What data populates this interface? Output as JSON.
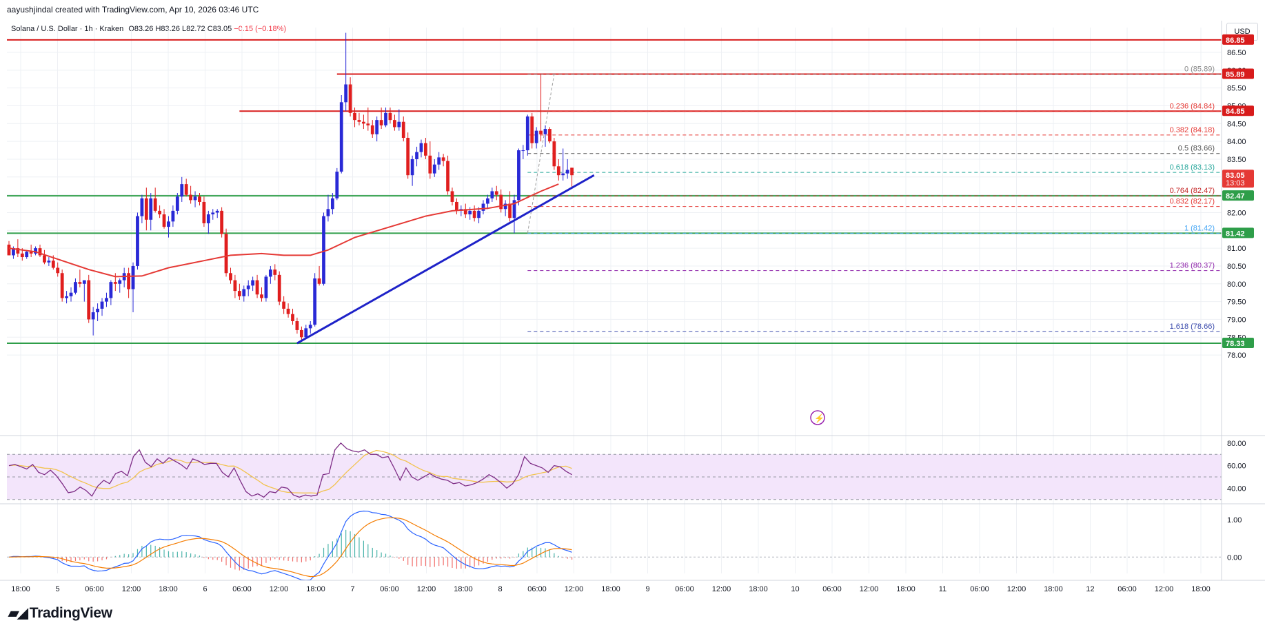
{
  "header": {
    "credit": "aayushjindal created with TradingView.com, Apr 10, 2026 03:46 UTC",
    "symbol": "Solana / U.S. Dollar · 1h · Kraken",
    "open_label": "O",
    "open": "83.26",
    "high_label": "H",
    "high": "83.26",
    "low_label": "L",
    "low": "82.72",
    "close_label": "C",
    "close": "83.05",
    "change": "−0.15 (−0.18%)",
    "currency": "USD"
  },
  "logo": {
    "text": "TradingView",
    "icon": "tradingview-logo-icon"
  },
  "colors": {
    "up": "#2929d6",
    "down": "#e01e1e",
    "ma": "#e53935",
    "trend": "#1e22c8",
    "support": "#2e9e49",
    "resistance": "#d81b1b",
    "rsi": "#7e2d86",
    "rsi_ma": "#f2c34f",
    "rsi_band": "#f3e5fb",
    "macd": "#2962ff",
    "signal": "#f57c00",
    "grid": "#eef0f4"
  },
  "chart_data": {
    "type": "candlestick",
    "symbol": "Solana / U.S. Dollar",
    "interval": "1h",
    "exchange": "Kraken",
    "ylim": [
      77.75,
      87.1
    ],
    "y_ticks": [
      78.0,
      78.5,
      79.0,
      79.5,
      80.0,
      80.5,
      81.0,
      81.5,
      82.0,
      82.5,
      83.0,
      83.5,
      84.0,
      84.5,
      85.0,
      85.5,
      86.0,
      86.5
    ],
    "x_ticks": [
      "18:00",
      "5",
      "06:00",
      "12:00",
      "18:00",
      "6",
      "06:00",
      "12:00",
      "18:00",
      "7",
      "06:00",
      "12:00",
      "18:00",
      "8",
      "06:00",
      "12:00",
      "18:00",
      "9",
      "06:00",
      "12:00",
      "18:00",
      "10",
      "06:00",
      "12:00",
      "18:00",
      "11",
      "06:00",
      "12:00",
      "18:00",
      "12",
      "06:00",
      "12:00",
      "18:00"
    ],
    "candles": [
      {
        "o": 81.1,
        "h": 81.2,
        "l": 80.8,
        "c": 80.8
      },
      {
        "o": 80.8,
        "h": 81.05,
        "l": 80.7,
        "c": 81.0
      },
      {
        "o": 81.0,
        "h": 81.25,
        "l": 80.75,
        "c": 80.85
      },
      {
        "o": 80.85,
        "h": 81.0,
        "l": 80.65,
        "c": 80.75
      },
      {
        "o": 80.75,
        "h": 80.95,
        "l": 80.7,
        "c": 80.9
      },
      {
        "o": 80.9,
        "h": 81.1,
        "l": 80.75,
        "c": 80.85
      },
      {
        "o": 80.85,
        "h": 81.05,
        "l": 80.8,
        "c": 81.0
      },
      {
        "o": 81.0,
        "h": 81.1,
        "l": 80.75,
        "c": 80.8
      },
      {
        "o": 80.8,
        "h": 80.95,
        "l": 80.55,
        "c": 80.6
      },
      {
        "o": 80.6,
        "h": 80.75,
        "l": 80.5,
        "c": 80.65
      },
      {
        "o": 80.65,
        "h": 80.8,
        "l": 80.4,
        "c": 80.45
      },
      {
        "o": 80.45,
        "h": 80.6,
        "l": 80.2,
        "c": 80.3
      },
      {
        "o": 80.3,
        "h": 80.4,
        "l": 79.5,
        "c": 79.6
      },
      {
        "o": 79.6,
        "h": 79.8,
        "l": 79.45,
        "c": 79.65
      },
      {
        "o": 79.65,
        "h": 79.9,
        "l": 79.5,
        "c": 79.75
      },
      {
        "o": 79.75,
        "h": 80.15,
        "l": 79.7,
        "c": 80.05
      },
      {
        "o": 80.05,
        "h": 80.4,
        "l": 79.9,
        "c": 80.0
      },
      {
        "o": 80.0,
        "h": 80.1,
        "l": 79.5,
        "c": 80.1
      },
      {
        "o": 80.1,
        "h": 80.25,
        "l": 78.9,
        "c": 79.0
      },
      {
        "o": 79.0,
        "h": 79.35,
        "l": 78.55,
        "c": 79.2
      },
      {
        "o": 79.2,
        "h": 79.45,
        "l": 78.95,
        "c": 79.3
      },
      {
        "o": 79.3,
        "h": 79.6,
        "l": 79.1,
        "c": 79.5
      },
      {
        "o": 79.5,
        "h": 79.75,
        "l": 79.35,
        "c": 79.6
      },
      {
        "o": 79.6,
        "h": 80.1,
        "l": 79.4,
        "c": 80.05
      },
      {
        "o": 80.05,
        "h": 80.3,
        "l": 79.8,
        "c": 80.0
      },
      {
        "o": 80.0,
        "h": 80.15,
        "l": 79.75,
        "c": 80.1
      },
      {
        "o": 80.1,
        "h": 80.45,
        "l": 79.9,
        "c": 80.3
      },
      {
        "o": 80.3,
        "h": 80.45,
        "l": 79.6,
        "c": 79.85
      },
      {
        "o": 79.85,
        "h": 80.6,
        "l": 79.2,
        "c": 80.5
      },
      {
        "o": 80.5,
        "h": 82.0,
        "l": 80.4,
        "c": 81.9
      },
      {
        "o": 81.9,
        "h": 82.5,
        "l": 81.7,
        "c": 82.4
      },
      {
        "o": 82.4,
        "h": 82.7,
        "l": 81.5,
        "c": 81.8
      },
      {
        "o": 81.8,
        "h": 82.55,
        "l": 81.5,
        "c": 82.4
      },
      {
        "o": 82.4,
        "h": 82.7,
        "l": 82.0,
        "c": 82.05
      },
      {
        "o": 82.05,
        "h": 82.2,
        "l": 81.85,
        "c": 81.95
      },
      {
        "o": 81.95,
        "h": 82.1,
        "l": 81.55,
        "c": 81.6
      },
      {
        "o": 81.6,
        "h": 81.9,
        "l": 81.3,
        "c": 81.75
      },
      {
        "o": 81.75,
        "h": 82.2,
        "l": 81.6,
        "c": 82.05
      },
      {
        "o": 82.05,
        "h": 82.55,
        "l": 81.95,
        "c": 82.45
      },
      {
        "o": 82.45,
        "h": 83.0,
        "l": 82.3,
        "c": 82.8
      },
      {
        "o": 82.8,
        "h": 82.95,
        "l": 82.45,
        "c": 82.5
      },
      {
        "o": 82.5,
        "h": 82.75,
        "l": 82.25,
        "c": 82.35
      },
      {
        "o": 82.35,
        "h": 82.6,
        "l": 82.15,
        "c": 82.45
      },
      {
        "o": 82.45,
        "h": 82.55,
        "l": 82.2,
        "c": 82.3
      },
      {
        "o": 82.3,
        "h": 82.45,
        "l": 81.6,
        "c": 81.7
      },
      {
        "o": 81.7,
        "h": 82.05,
        "l": 81.4,
        "c": 81.95
      },
      {
        "o": 81.95,
        "h": 82.1,
        "l": 81.8,
        "c": 82.0
      },
      {
        "o": 82.0,
        "h": 82.1,
        "l": 81.85,
        "c": 82.05
      },
      {
        "o": 82.05,
        "h": 82.15,
        "l": 81.3,
        "c": 81.4
      },
      {
        "o": 81.4,
        "h": 81.55,
        "l": 80.2,
        "c": 80.3
      },
      {
        "o": 80.3,
        "h": 80.45,
        "l": 80.0,
        "c": 80.1
      },
      {
        "o": 80.1,
        "h": 80.25,
        "l": 79.6,
        "c": 79.8
      },
      {
        "o": 79.8,
        "h": 80.0,
        "l": 79.55,
        "c": 79.65
      },
      {
        "o": 79.65,
        "h": 79.95,
        "l": 79.5,
        "c": 79.85
      },
      {
        "o": 79.85,
        "h": 80.1,
        "l": 79.65,
        "c": 79.95
      },
      {
        "o": 79.95,
        "h": 80.2,
        "l": 79.8,
        "c": 80.1
      },
      {
        "o": 80.1,
        "h": 80.25,
        "l": 79.6,
        "c": 79.7
      },
      {
        "o": 79.7,
        "h": 79.9,
        "l": 79.5,
        "c": 79.6
      },
      {
        "o": 79.6,
        "h": 80.25,
        "l": 79.5,
        "c": 80.2
      },
      {
        "o": 80.2,
        "h": 80.5,
        "l": 80.0,
        "c": 80.4
      },
      {
        "o": 80.4,
        "h": 80.55,
        "l": 80.1,
        "c": 80.25
      },
      {
        "o": 80.25,
        "h": 80.35,
        "l": 79.4,
        "c": 79.5
      },
      {
        "o": 79.5,
        "h": 79.65,
        "l": 79.15,
        "c": 79.3
      },
      {
        "o": 79.3,
        "h": 79.45,
        "l": 79.05,
        "c": 79.15
      },
      {
        "o": 79.15,
        "h": 79.3,
        "l": 78.85,
        "c": 78.95
      },
      {
        "o": 78.95,
        "h": 79.05,
        "l": 78.6,
        "c": 78.7
      },
      {
        "o": 78.7,
        "h": 78.8,
        "l": 78.4,
        "c": 78.5
      },
      {
        "o": 78.5,
        "h": 78.85,
        "l": 78.45,
        "c": 78.75
      },
      {
        "o": 78.75,
        "h": 78.95,
        "l": 78.6,
        "c": 78.85
      },
      {
        "o": 78.85,
        "h": 80.3,
        "l": 78.8,
        "c": 80.15
      },
      {
        "o": 80.15,
        "h": 80.5,
        "l": 79.95,
        "c": 80.0
      },
      {
        "o": 80.0,
        "h": 82.0,
        "l": 79.95,
        "c": 81.9
      },
      {
        "o": 81.9,
        "h": 82.5,
        "l": 81.75,
        "c": 82.1
      },
      {
        "o": 82.1,
        "h": 82.55,
        "l": 81.95,
        "c": 82.4
      },
      {
        "o": 82.4,
        "h": 83.25,
        "l": 82.35,
        "c": 83.15
      },
      {
        "o": 83.15,
        "h": 85.3,
        "l": 83.1,
        "c": 85.1
      },
      {
        "o": 85.1,
        "h": 87.05,
        "l": 84.85,
        "c": 85.6
      },
      {
        "o": 85.6,
        "h": 85.8,
        "l": 84.7,
        "c": 84.8
      },
      {
        "o": 84.8,
        "h": 84.95,
        "l": 84.4,
        "c": 84.6
      },
      {
        "o": 84.6,
        "h": 84.8,
        "l": 84.45,
        "c": 84.55
      },
      {
        "o": 84.55,
        "h": 84.75,
        "l": 84.35,
        "c": 84.5
      },
      {
        "o": 84.5,
        "h": 84.95,
        "l": 84.3,
        "c": 84.45
      },
      {
        "o": 84.45,
        "h": 84.6,
        "l": 84.1,
        "c": 84.2
      },
      {
        "o": 84.2,
        "h": 84.7,
        "l": 84.0,
        "c": 84.6
      },
      {
        "o": 84.6,
        "h": 84.95,
        "l": 84.35,
        "c": 84.45
      },
      {
        "o": 84.45,
        "h": 84.95,
        "l": 84.4,
        "c": 84.8
      },
      {
        "o": 84.8,
        "h": 84.95,
        "l": 84.5,
        "c": 84.6
      },
      {
        "o": 84.6,
        "h": 84.75,
        "l": 84.3,
        "c": 84.4
      },
      {
        "o": 84.4,
        "h": 84.9,
        "l": 84.3,
        "c": 84.55
      },
      {
        "o": 84.55,
        "h": 84.7,
        "l": 84.0,
        "c": 84.1
      },
      {
        "o": 84.1,
        "h": 84.25,
        "l": 82.95,
        "c": 83.05
      },
      {
        "o": 83.05,
        "h": 83.6,
        "l": 82.75,
        "c": 83.5
      },
      {
        "o": 83.5,
        "h": 83.85,
        "l": 83.3,
        "c": 83.7
      },
      {
        "o": 83.7,
        "h": 84.05,
        "l": 83.55,
        "c": 83.95
      },
      {
        "o": 83.95,
        "h": 84.1,
        "l": 83.5,
        "c": 83.6
      },
      {
        "o": 83.6,
        "h": 84.0,
        "l": 82.95,
        "c": 83.1
      },
      {
        "o": 83.1,
        "h": 83.5,
        "l": 83.0,
        "c": 83.35
      },
      {
        "o": 83.35,
        "h": 83.7,
        "l": 83.2,
        "c": 83.55
      },
      {
        "o": 83.55,
        "h": 83.65,
        "l": 83.3,
        "c": 83.45
      },
      {
        "o": 83.45,
        "h": 83.6,
        "l": 82.5,
        "c": 82.6
      },
      {
        "o": 82.6,
        "h": 82.7,
        "l": 82.2,
        "c": 82.3
      },
      {
        "o": 82.3,
        "h": 82.4,
        "l": 81.95,
        "c": 82.05
      },
      {
        "o": 82.05,
        "h": 82.2,
        "l": 81.9,
        "c": 82.1
      },
      {
        "o": 82.1,
        "h": 82.25,
        "l": 81.85,
        "c": 81.95
      },
      {
        "o": 81.95,
        "h": 82.15,
        "l": 81.8,
        "c": 82.05
      },
      {
        "o": 82.05,
        "h": 82.2,
        "l": 81.75,
        "c": 81.85
      },
      {
        "o": 81.85,
        "h": 82.15,
        "l": 81.7,
        "c": 82.05
      },
      {
        "o": 82.05,
        "h": 82.35,
        "l": 81.95,
        "c": 82.25
      },
      {
        "o": 82.25,
        "h": 82.5,
        "l": 82.1,
        "c": 82.4
      },
      {
        "o": 82.4,
        "h": 82.7,
        "l": 82.3,
        "c": 82.6
      },
      {
        "o": 82.6,
        "h": 82.75,
        "l": 82.35,
        "c": 82.5
      },
      {
        "o": 82.5,
        "h": 82.65,
        "l": 82.0,
        "c": 82.1
      },
      {
        "o": 82.1,
        "h": 82.35,
        "l": 81.9,
        "c": 82.25
      },
      {
        "o": 82.25,
        "h": 82.6,
        "l": 81.75,
        "c": 81.85
      },
      {
        "o": 81.85,
        "h": 82.5,
        "l": 81.42,
        "c": 82.35
      },
      {
        "o": 82.35,
        "h": 83.8,
        "l": 82.2,
        "c": 83.75
      },
      {
        "o": 83.75,
        "h": 83.9,
        "l": 83.5,
        "c": 83.75
      },
      {
        "o": 83.75,
        "h": 84.75,
        "l": 83.6,
        "c": 84.7
      },
      {
        "o": 84.7,
        "h": 84.8,
        "l": 83.8,
        "c": 83.95
      },
      {
        "o": 83.95,
        "h": 84.4,
        "l": 83.8,
        "c": 84.3
      },
      {
        "o": 84.3,
        "h": 85.9,
        "l": 84.0,
        "c": 84.2
      },
      {
        "o": 84.2,
        "h": 84.45,
        "l": 83.85,
        "c": 84.35
      },
      {
        "o": 84.35,
        "h": 84.4,
        "l": 83.95,
        "c": 84.0
      },
      {
        "o": 84.0,
        "h": 84.1,
        "l": 83.2,
        "c": 83.3
      },
      {
        "o": 83.3,
        "h": 83.5,
        "l": 82.9,
        "c": 83.05
      },
      {
        "o": 83.05,
        "h": 83.8,
        "l": 82.9,
        "c": 83.1
      },
      {
        "o": 83.1,
        "h": 83.5,
        "l": 82.95,
        "c": 83.2
      },
      {
        "o": 83.26,
        "h": 83.26,
        "l": 82.72,
        "c": 83.05
      }
    ],
    "moving_average": [
      {
        "i": 0,
        "v": 81.0
      },
      {
        "i": 6,
        "v": 80.9
      },
      {
        "i": 12,
        "v": 80.65
      },
      {
        "i": 18,
        "v": 80.4
      },
      {
        "i": 24,
        "v": 80.2
      },
      {
        "i": 30,
        "v": 80.22
      },
      {
        "i": 36,
        "v": 80.45
      },
      {
        "i": 44,
        "v": 80.65
      },
      {
        "i": 50,
        "v": 80.8
      },
      {
        "i": 57,
        "v": 80.85
      },
      {
        "i": 62,
        "v": 80.8
      },
      {
        "i": 68,
        "v": 80.8
      },
      {
        "i": 72,
        "v": 80.95
      },
      {
        "i": 78,
        "v": 81.3
      },
      {
        "i": 86,
        "v": 81.6
      },
      {
        "i": 94,
        "v": 81.9
      },
      {
        "i": 100,
        "v": 82.05
      },
      {
        "i": 108,
        "v": 82.12
      },
      {
        "i": 114,
        "v": 82.25
      },
      {
        "i": 120,
        "v": 82.6
      },
      {
        "i": 124,
        "v": 82.8
      }
    ],
    "trendline": {
      "from": {
        "i": 65,
        "v": 78.33
      },
      "to": {
        "i": 132,
        "v": 83.05
      }
    },
    "horizontal_lines": [
      {
        "value": 86.85,
        "color": "resistance",
        "from": "start"
      },
      {
        "value": 85.89,
        "color": "resistance",
        "from": "i74"
      },
      {
        "value": 84.85,
        "color": "resistance",
        "from": "i52"
      },
      {
        "value": 82.47,
        "color": "support",
        "from": "start"
      },
      {
        "value": 81.42,
        "color": "support",
        "from": "start"
      },
      {
        "value": 78.33,
        "color": "support",
        "from": "start"
      }
    ],
    "fib_levels": [
      {
        "label": "0 (85.89)",
        "value": 85.89,
        "color": "#8a8a8a"
      },
      {
        "label": "0.236 (84.84)",
        "value": 84.84,
        "color": "#e53935"
      },
      {
        "label": "0.382 (84.18)",
        "value": 84.18,
        "color": "#e53935"
      },
      {
        "label": "0.5 (83.66)",
        "value": 83.66,
        "color": "#555555"
      },
      {
        "label": "0.618 (83.13)",
        "value": 83.13,
        "color": "#26a69a"
      },
      {
        "label": "0.764 (82.47)",
        "value": 82.47,
        "color": "#c62828"
      },
      {
        "label": "0.832 (82.17)",
        "value": 82.17,
        "color": "#e53935"
      },
      {
        "label": "1 (81.42)",
        "value": 81.42,
        "color": "#42a5f5"
      },
      {
        "label": "1.236 (80.37)",
        "value": 80.37,
        "color": "#8e24aa"
      },
      {
        "label": "1.618 (78.66)",
        "value": 78.66,
        "color": "#3949ab"
      }
    ],
    "price_labels": [
      {
        "value": 86.85,
        "text": "86.85",
        "bg": "#d81b1b"
      },
      {
        "value": 85.89,
        "text": "85.89",
        "bg": "#d81b1b"
      },
      {
        "value": 84.85,
        "text": "84.85",
        "bg": "#d81b1b"
      },
      {
        "value": 83.05,
        "text": "83.05",
        "bg": "#e53935",
        "sub": "13:03"
      },
      {
        "value": 82.47,
        "text": "82.47",
        "bg": "#2e9e49"
      },
      {
        "value": 81.42,
        "text": "81.42",
        "bg": "#2e9e49"
      },
      {
        "value": 78.33,
        "text": "78.33",
        "bg": "#2e9e49"
      }
    ],
    "rsi": {
      "ticks": [
        "80.00",
        "60.00",
        "40.00"
      ],
      "ylim": [
        28,
        86
      ],
      "band": [
        30,
        70
      ],
      "values": [
        60,
        61,
        59,
        57,
        61,
        54,
        52,
        56,
        51,
        44,
        36,
        37,
        41,
        38,
        33,
        42,
        47,
        44,
        53,
        55,
        51,
        68,
        74,
        63,
        59,
        66,
        62,
        67,
        64,
        61,
        57,
        66,
        64,
        61,
        62,
        62,
        54,
        50,
        58,
        47,
        37,
        33,
        35,
        32,
        37,
        36,
        41,
        40,
        34,
        32,
        34,
        33,
        34,
        52,
        53,
        74,
        80,
        75,
        73,
        72,
        74,
        70,
        70,
        67,
        68,
        58,
        47,
        58,
        50,
        47,
        50,
        53,
        50,
        48,
        47,
        44,
        45,
        42,
        43,
        45,
        48,
        52,
        49,
        45,
        40,
        44,
        52,
        68,
        62,
        60,
        58,
        54,
        60,
        59,
        55,
        52
      ]
    },
    "macd": {
      "ticks": [
        "1.00",
        "0.00"
      ],
      "ylim": [
        -0.4,
        1.35
      ]
    }
  }
}
